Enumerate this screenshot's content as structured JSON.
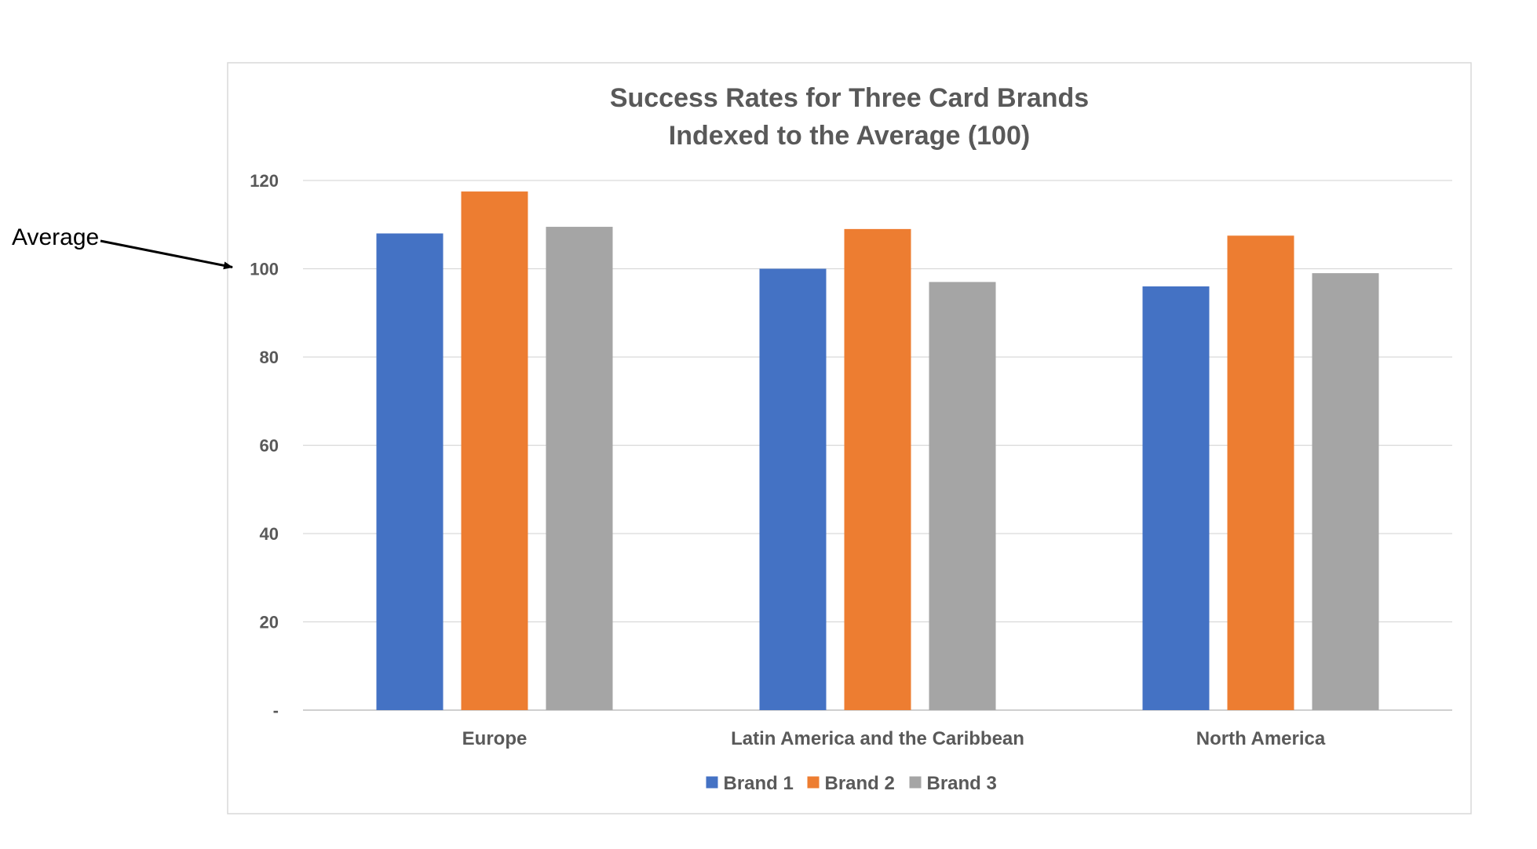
{
  "annotation": {
    "label": "Average",
    "points_to": 100
  },
  "chart_data": {
    "type": "bar",
    "title_lines": [
      "Success Rates for Three Card Brands",
      "Indexed to the Average (100)"
    ],
    "categories": [
      "Europe",
      "Latin America and the Caribbean",
      "North America"
    ],
    "series": [
      {
        "name": "Brand 1",
        "color": "#4472C4",
        "values": [
          108,
          100,
          96
        ]
      },
      {
        "name": "Brand 2",
        "color": "#ED7D31",
        "values": [
          117.5,
          109,
          107.5
        ]
      },
      {
        "name": "Brand 3",
        "color": "#A5A5A5",
        "values": [
          109.5,
          97,
          99
        ]
      }
    ],
    "ylim": [
      0,
      120
    ],
    "yticks": [
      0,
      20,
      40,
      60,
      80,
      100,
      120
    ],
    "ytick_labels": [
      "-",
      "20",
      "40",
      "60",
      "80",
      "100",
      "120"
    ],
    "xlabel": "",
    "ylabel": "",
    "grid": true,
    "legend_position": "bottom"
  }
}
